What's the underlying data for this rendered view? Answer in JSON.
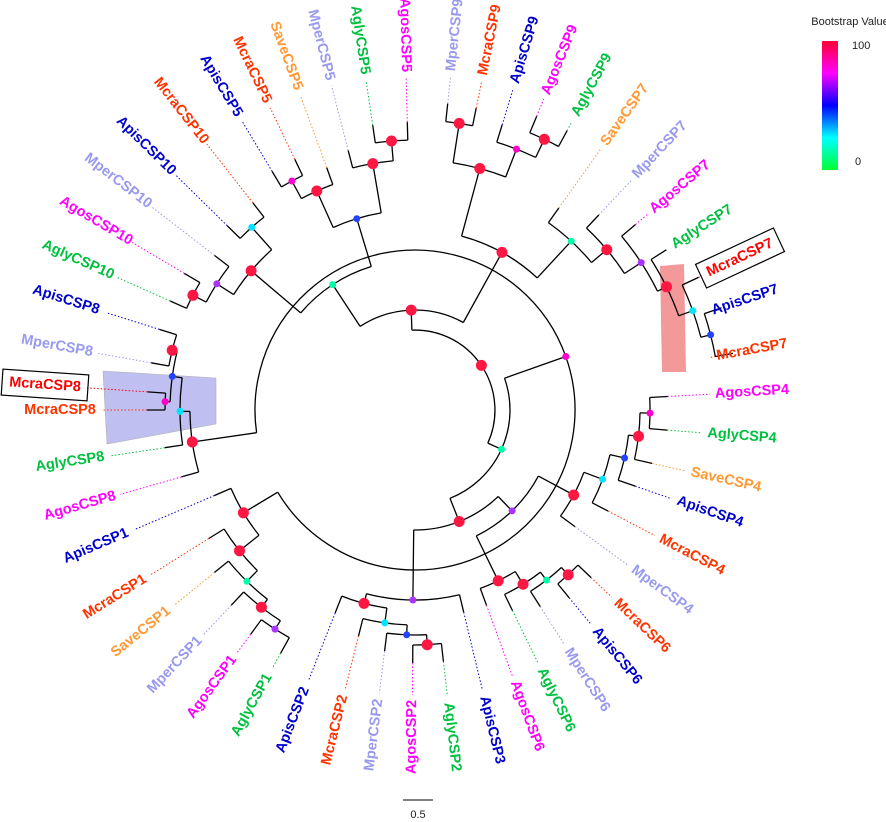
{
  "legend": {
    "title": "Bootstrap Value",
    "max_label": "100",
    "min_label": "0",
    "gradient": [
      "#ff0033",
      "#ff00ff",
      "#0000ff",
      "#00ffff",
      "#00ff33"
    ]
  },
  "scale_bar": {
    "label": "0.5"
  },
  "species_colors": {
    "Mcra": "#ff3300",
    "McraHighlight": "#ff0000",
    "Apis": "#0000cc",
    "Agos": "#ff00ff",
    "Agly": "#00c040",
    "Mper": "#9999ee",
    "Save": "#ff9933"
  },
  "highlight_colors": {
    "CSP7": "#f08080",
    "CSP8": "#aaaaee"
  },
  "leaves": [
    {
      "label": "AgosCSP5",
      "sp": "Agos"
    },
    {
      "label": "MperCSP9",
      "sp": "Mper"
    },
    {
      "label": "McraCSP9",
      "sp": "Mcra"
    },
    {
      "label": "ApisCSP9",
      "sp": "Apis"
    },
    {
      "label": "AgosCSP9",
      "sp": "Agos"
    },
    {
      "label": "AglyCSP9",
      "sp": "Agly"
    },
    {
      "label": "SaveCSP7",
      "sp": "Save"
    },
    {
      "label": "MperCSP7",
      "sp": "Mper"
    },
    {
      "label": "AgosCSP7",
      "sp": "Agos"
    },
    {
      "label": "AglyCSP7",
      "sp": "Agly"
    },
    {
      "label": "McraCSP7",
      "sp": "McraHighlight",
      "boxed": true
    },
    {
      "label": "ApisCSP7",
      "sp": "Apis"
    },
    {
      "label": "McraCSP7",
      "sp": "Mcra"
    },
    {
      "label": "AgosCSP4",
      "sp": "Agos"
    },
    {
      "label": "AglyCSP4",
      "sp": "Agly"
    },
    {
      "label": "SaveCSP4",
      "sp": "Save"
    },
    {
      "label": "ApisCSP4",
      "sp": "Apis"
    },
    {
      "label": "McraCSP4",
      "sp": "Mcra"
    },
    {
      "label": "MperCSP4",
      "sp": "Mper"
    },
    {
      "label": "McraCSP6",
      "sp": "Mcra"
    },
    {
      "label": "ApisCSP6",
      "sp": "Apis"
    },
    {
      "label": "MperCSP6",
      "sp": "Mper"
    },
    {
      "label": "AglyCSP6",
      "sp": "Agly"
    },
    {
      "label": "AgosCSP6",
      "sp": "Agos"
    },
    {
      "label": "ApisCSP3",
      "sp": "Apis"
    },
    {
      "label": "AglyCSP2",
      "sp": "Agly"
    },
    {
      "label": "AgosCSP2",
      "sp": "Agos"
    },
    {
      "label": "MperCSP2",
      "sp": "Mper"
    },
    {
      "label": "McraCSP2",
      "sp": "Mcra"
    },
    {
      "label": "ApisCSP2",
      "sp": "Apis"
    },
    {
      "label": "AglyCSP1",
      "sp": "Agly"
    },
    {
      "label": "AgosCSP1",
      "sp": "Agos"
    },
    {
      "label": "MperCSP1",
      "sp": "Mper"
    },
    {
      "label": "SaveCSP1",
      "sp": "Save"
    },
    {
      "label": "McraCSP1",
      "sp": "Mcra"
    },
    {
      "label": "ApisCSP1",
      "sp": "Apis"
    },
    {
      "label": "AgosCSP8",
      "sp": "Agos"
    },
    {
      "label": "AglyCSP8",
      "sp": "Agly"
    },
    {
      "label": "McraCSP8",
      "sp": "McraHighlight",
      "boxed": true
    },
    {
      "label": "McraCSP8",
      "sp": "Mcra"
    },
    {
      "label": "MperCSP8",
      "sp": "Mper"
    },
    {
      "label": "ApisCSP8",
      "sp": "Apis"
    },
    {
      "label": "AglyCSP10",
      "sp": "Agly"
    },
    {
      "label": "AgosCSP10",
      "sp": "Agos"
    },
    {
      "label": "MperCSP10",
      "sp": "Mper"
    },
    {
      "label": "ApisCSP10",
      "sp": "Apis"
    },
    {
      "label": "McraCSP10",
      "sp": "Mcra"
    },
    {
      "label": "ApisCSP5",
      "sp": "Apis"
    },
    {
      "label": "McraCSP5",
      "sp": "Mcra"
    },
    {
      "label": "SaveCSP5",
      "sp": "Save"
    },
    {
      "label": "MperCSP5",
      "sp": "Mper"
    },
    {
      "label": "AglyCSP5",
      "sp": "Agly"
    }
  ]
}
